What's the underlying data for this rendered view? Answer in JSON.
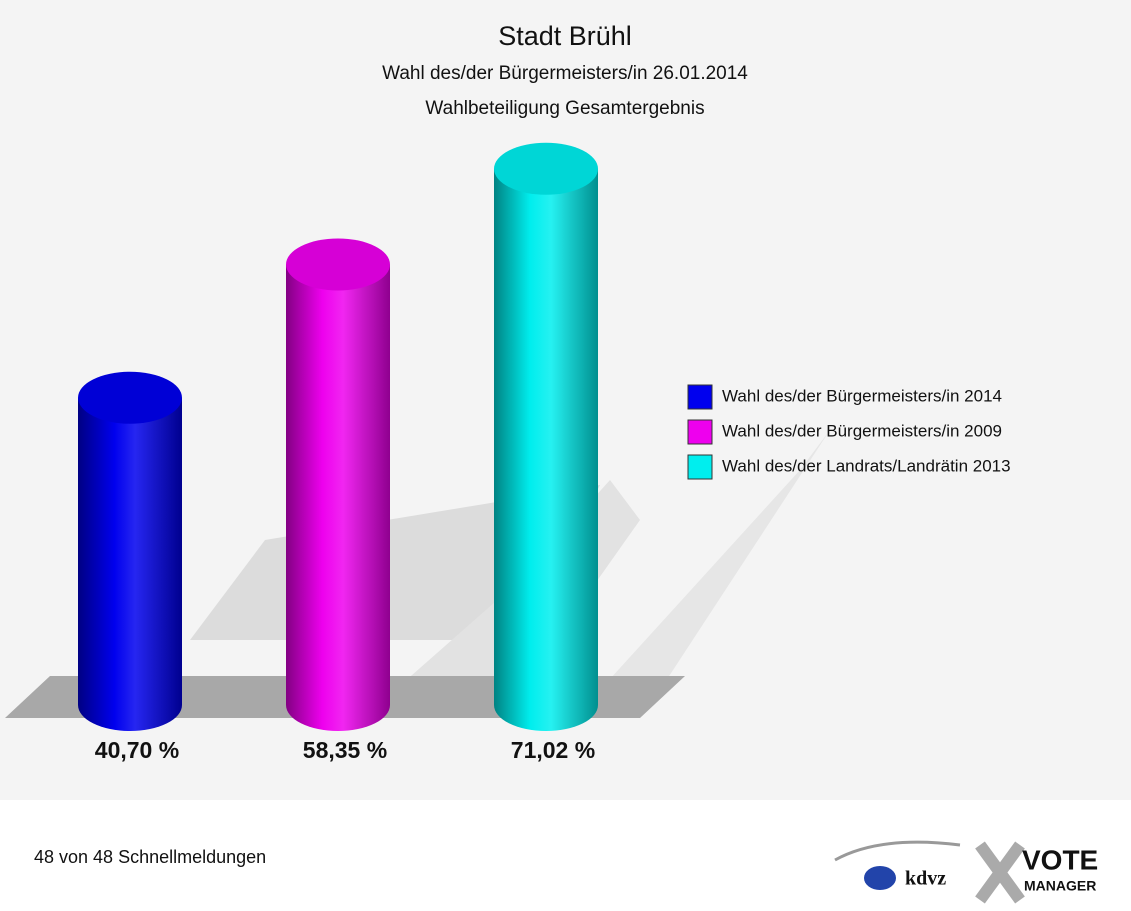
{
  "chart_data": {
    "type": "bar",
    "title": "Stadt Brühl",
    "subtitle": [
      "Wahl des/der Bürgermeisters/in 26.01.2014",
      "Wahlbeteiligung Gesamtergebnis"
    ],
    "categories": [
      "Wahl des/der Bürgermeisters/in 2014",
      "Wahl des/der Bürgermeisters/in 2009",
      "Wahl des/der Landrats/Landrätin 2013"
    ],
    "values": [
      40.7,
      58.35,
      71.02
    ],
    "value_labels": [
      "40,70 %",
      "58,35 %",
      "71,02 %"
    ],
    "colors": [
      "#0000ee",
      "#ee00ee",
      "#00eeee"
    ],
    "footnote": "48 von 48 Schnellmeldungen",
    "logo": {
      "kdvz": "kdvz",
      "vote": "VOTE",
      "manager": "MANAGER"
    }
  }
}
